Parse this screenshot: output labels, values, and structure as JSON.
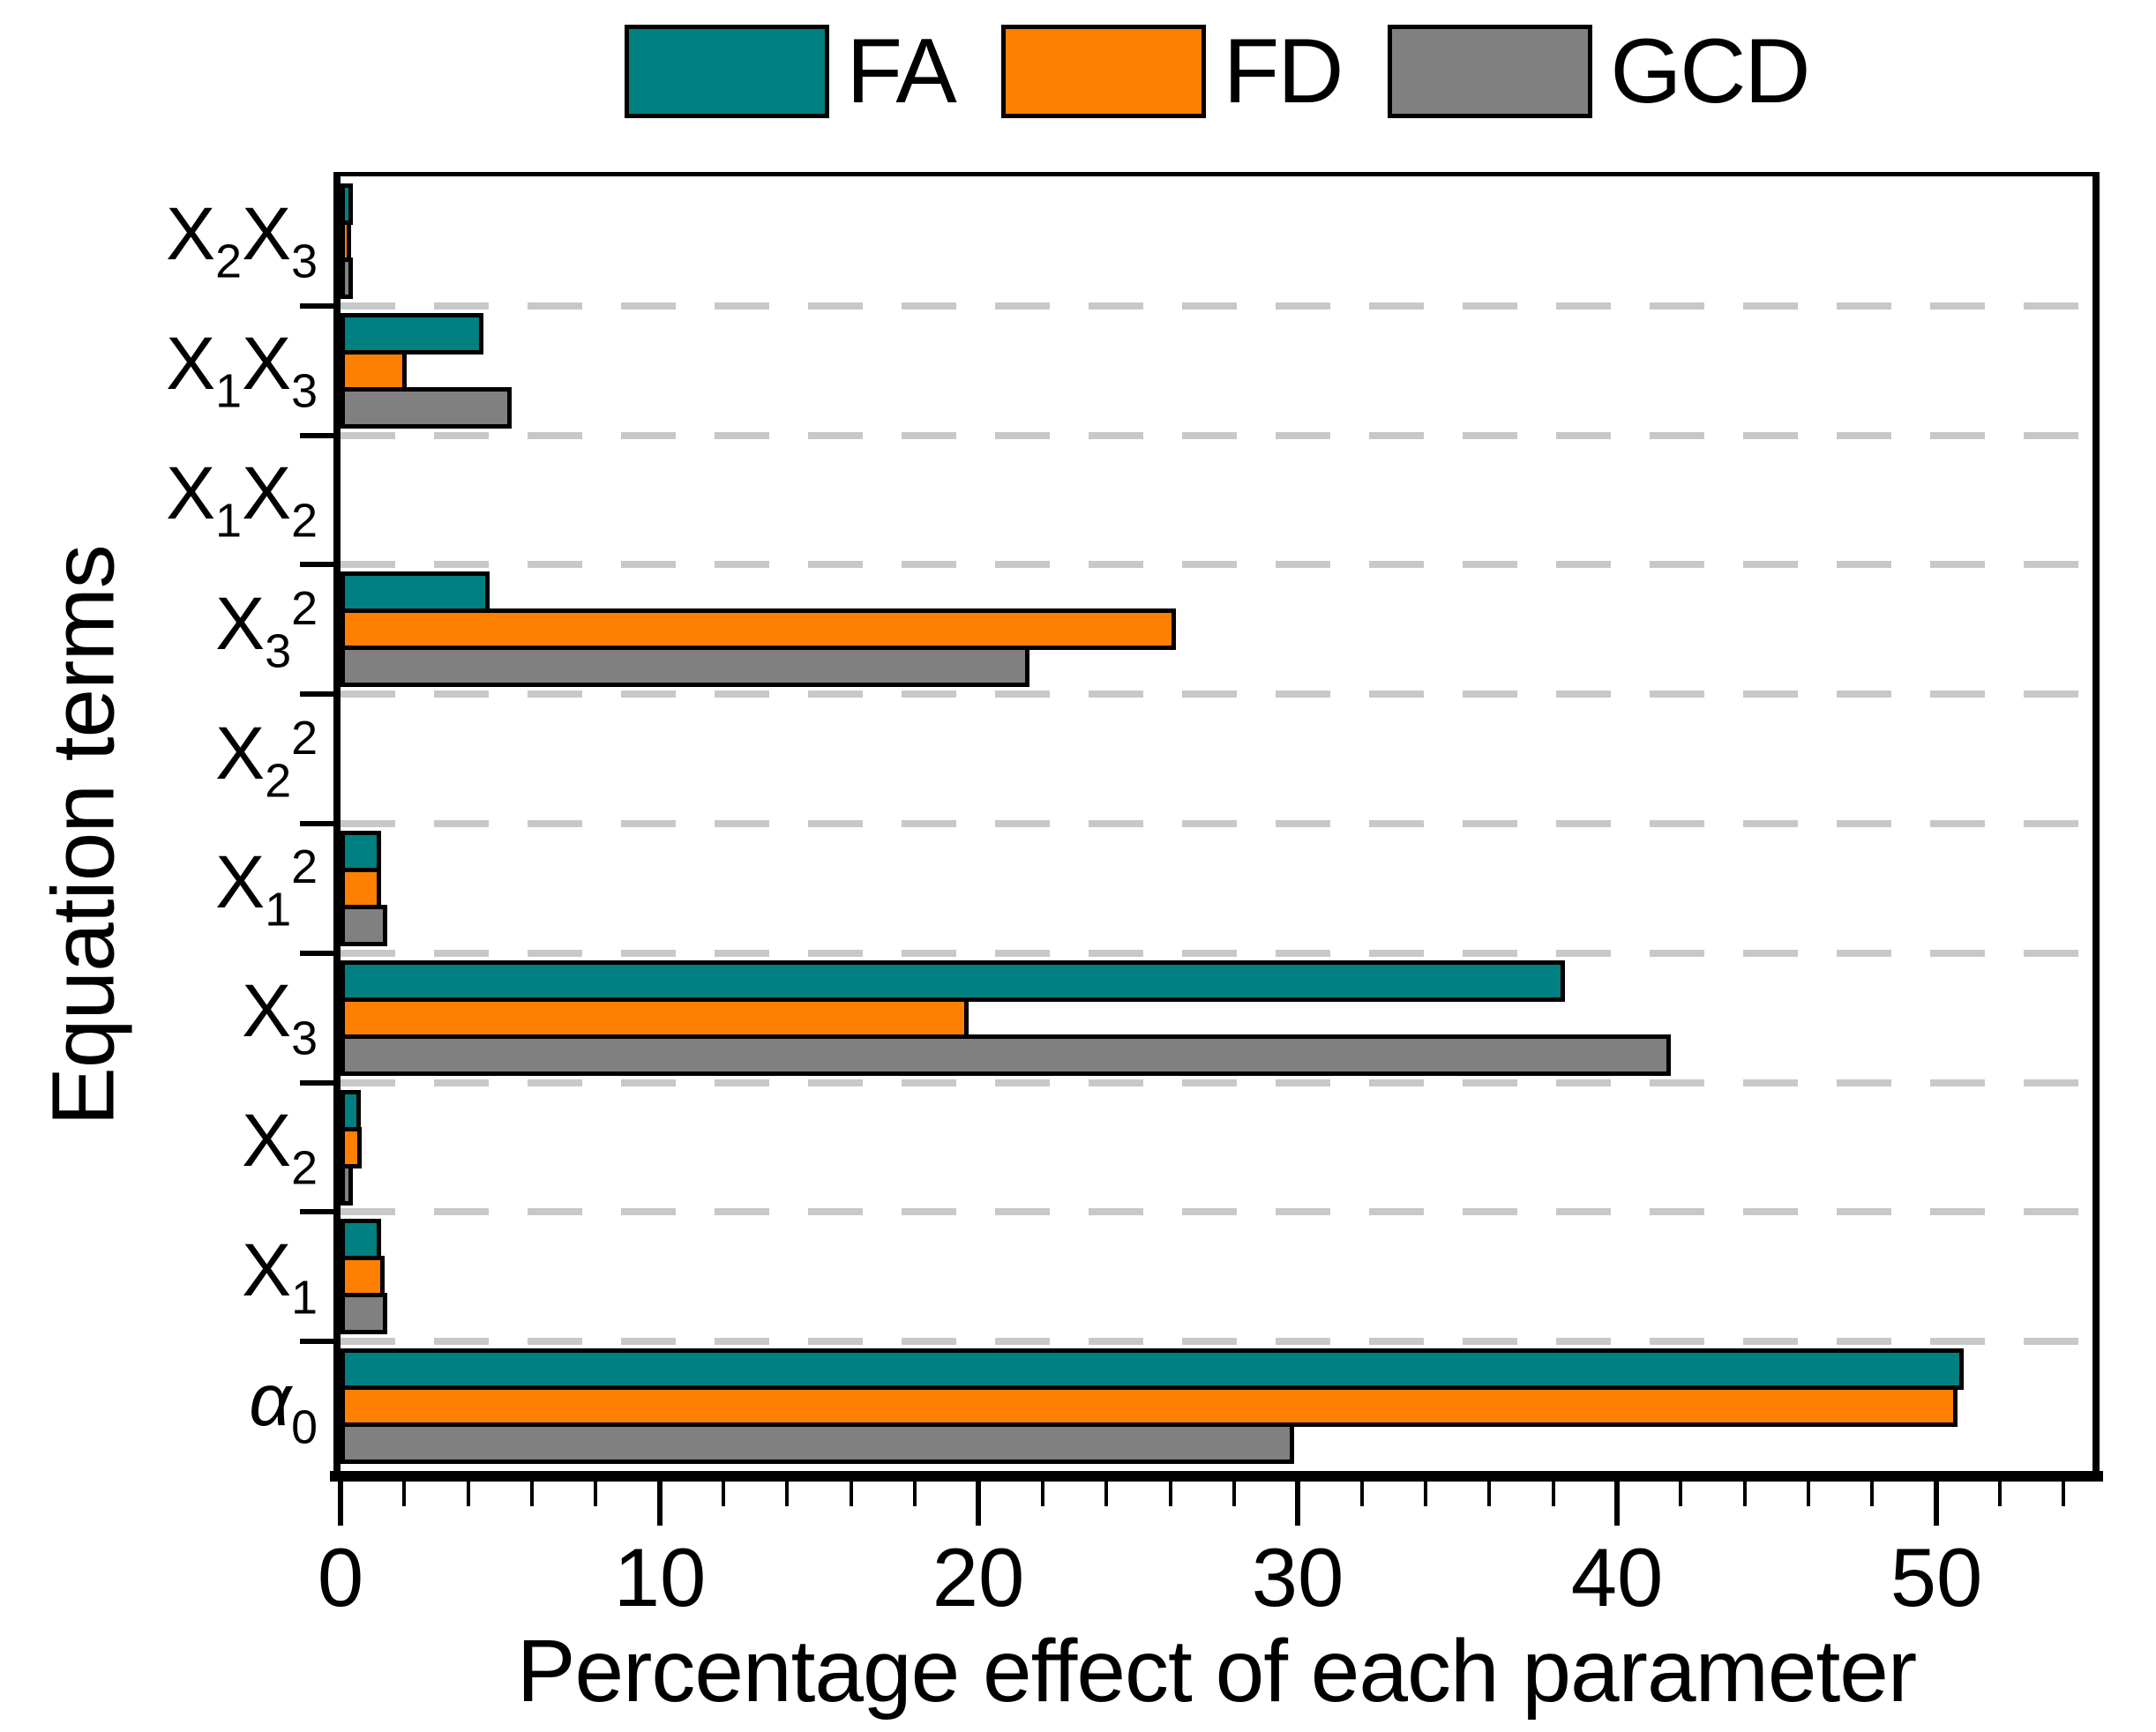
{
  "legend": {
    "items": [
      {
        "label": "FA",
        "color": "#008080"
      },
      {
        "label": "FD",
        "color": "#ff8000"
      },
      {
        "label": "GCD",
        "color": "#808080"
      }
    ]
  },
  "axes": {
    "x_title": "Percentage effect of each parameter",
    "y_title": "Equation terms"
  },
  "chart_data": {
    "type": "bar",
    "orientation": "horizontal",
    "title": "",
    "xlabel": "Percentage effect of each parameter",
    "ylabel": "Equation terms",
    "xlim": [
      0,
      54.9
    ],
    "x_major_ticks": [
      0,
      10,
      20,
      30,
      40,
      50
    ],
    "x_minor_tick_step": 2,
    "grid": "dashed gray horizontal separators between category bands",
    "legend_position": "top-center",
    "bar_outline_color": "#000000",
    "gridline_color": "#c8c8c8",
    "categories": [
      {
        "id": "X2X3",
        "parts": [
          {
            "t": "X"
          },
          {
            "t": "2",
            "s": "sub"
          },
          {
            "t": "X"
          },
          {
            "t": "3",
            "s": "sub"
          }
        ]
      },
      {
        "id": "X1X3",
        "parts": [
          {
            "t": "X"
          },
          {
            "t": "1",
            "s": "sub"
          },
          {
            "t": "X"
          },
          {
            "t": "3",
            "s": "sub"
          }
        ]
      },
      {
        "id": "X1X2",
        "parts": [
          {
            "t": "X"
          },
          {
            "t": "1",
            "s": "sub"
          },
          {
            "t": "X"
          },
          {
            "t": "2",
            "s": "sub"
          }
        ]
      },
      {
        "id": "X3sq",
        "parts": [
          {
            "t": "X"
          },
          {
            "t": "3",
            "s": "sub"
          },
          {
            "t": "2",
            "s": "sup"
          }
        ]
      },
      {
        "id": "X2sq",
        "parts": [
          {
            "t": "X"
          },
          {
            "t": "2",
            "s": "sub"
          },
          {
            "t": "2",
            "s": "sup"
          }
        ]
      },
      {
        "id": "X1sq",
        "parts": [
          {
            "t": "X"
          },
          {
            "t": "1",
            "s": "sub"
          },
          {
            "t": "2",
            "s": "sup"
          }
        ]
      },
      {
        "id": "X3",
        "parts": [
          {
            "t": "X"
          },
          {
            "t": "3",
            "s": "sub"
          }
        ]
      },
      {
        "id": "X2",
        "parts": [
          {
            "t": "X"
          },
          {
            "t": "2",
            "s": "sub"
          }
        ]
      },
      {
        "id": "X1",
        "parts": [
          {
            "t": "X"
          },
          {
            "t": "1",
            "s": "sub"
          }
        ]
      },
      {
        "id": "alpha0",
        "parts": [
          {
            "t": "α",
            "s": "italic"
          },
          {
            "t": "0",
            "s": "sub"
          }
        ]
      }
    ],
    "series": [
      {
        "name": "FA",
        "color": "#008080",
        "values": [
          0.1,
          4.2,
          0,
          4.4,
          0,
          1.0,
          38.1,
          0.35,
          1.0,
          50.6
        ]
      },
      {
        "name": "FD",
        "color": "#ff8000",
        "values": [
          0.05,
          1.8,
          0,
          25.9,
          0,
          1.0,
          19.4,
          0.4,
          1.1,
          50.4
        ]
      },
      {
        "name": "GCD",
        "color": "#808080",
        "values": [
          0.1,
          5.1,
          0,
          21.3,
          0,
          1.2,
          41.4,
          0.1,
          1.2,
          29.6
        ]
      }
    ]
  }
}
